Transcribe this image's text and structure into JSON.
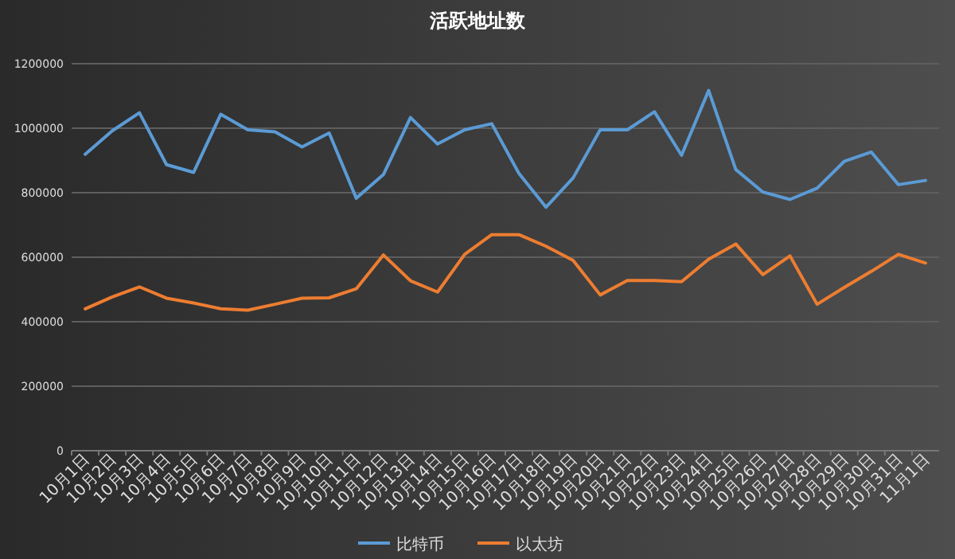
{
  "chart_data": {
    "type": "line",
    "title": "活跃地址数",
    "categories": [
      "10月1日",
      "10月2日",
      "10月3日",
      "10月4日",
      "10月5日",
      "10月6日",
      "10月7日",
      "10月8日",
      "10月9日",
      "10月10日",
      "10月11日",
      "10月12日",
      "10月13日",
      "10月14日",
      "10月15日",
      "10月16日",
      "10月17日",
      "10月18日",
      "10月19日",
      "10月20日",
      "10月21日",
      "10月22日",
      "10月23日",
      "10月24日",
      "10月25日",
      "10月26日",
      "10月27日",
      "10月28日",
      "10月29日",
      "10月30日",
      "10月31日",
      "11月1日"
    ],
    "series": [
      {
        "name": "比特币",
        "color": "#5b9bd5",
        "values": [
          919000,
          992000,
          1048000,
          887000,
          863000,
          1043000,
          995000,
          989000,
          942000,
          985000,
          783000,
          856000,
          1033000,
          951000,
          995000,
          1014000,
          860000,
          755000,
          846000,
          995000,
          995000,
          1051000,
          916000,
          1117000,
          872000,
          802000,
          779000,
          814000,
          897000,
          926000,
          825000,
          838000
        ]
      },
      {
        "name": "以太坊",
        "color": "#ed7d31",
        "values": [
          440000,
          477000,
          508000,
          473000,
          458000,
          440000,
          436000,
          454000,
          473000,
          474000,
          502000,
          607000,
          527000,
          492000,
          609000,
          670000,
          670000,
          634000,
          590000,
          483000,
          528000,
          528000,
          524000,
          594000,
          641000,
          546000,
          604000,
          454000,
          506000,
          556000,
          609000,
          582000
        ]
      }
    ],
    "ylim": [
      0,
      1200000
    ],
    "yticks": [
      0,
      200000,
      400000,
      600000,
      800000,
      1000000,
      1200000
    ],
    "grid": "y",
    "legend": "bottom",
    "marker": "none",
    "line_style": "solid"
  }
}
